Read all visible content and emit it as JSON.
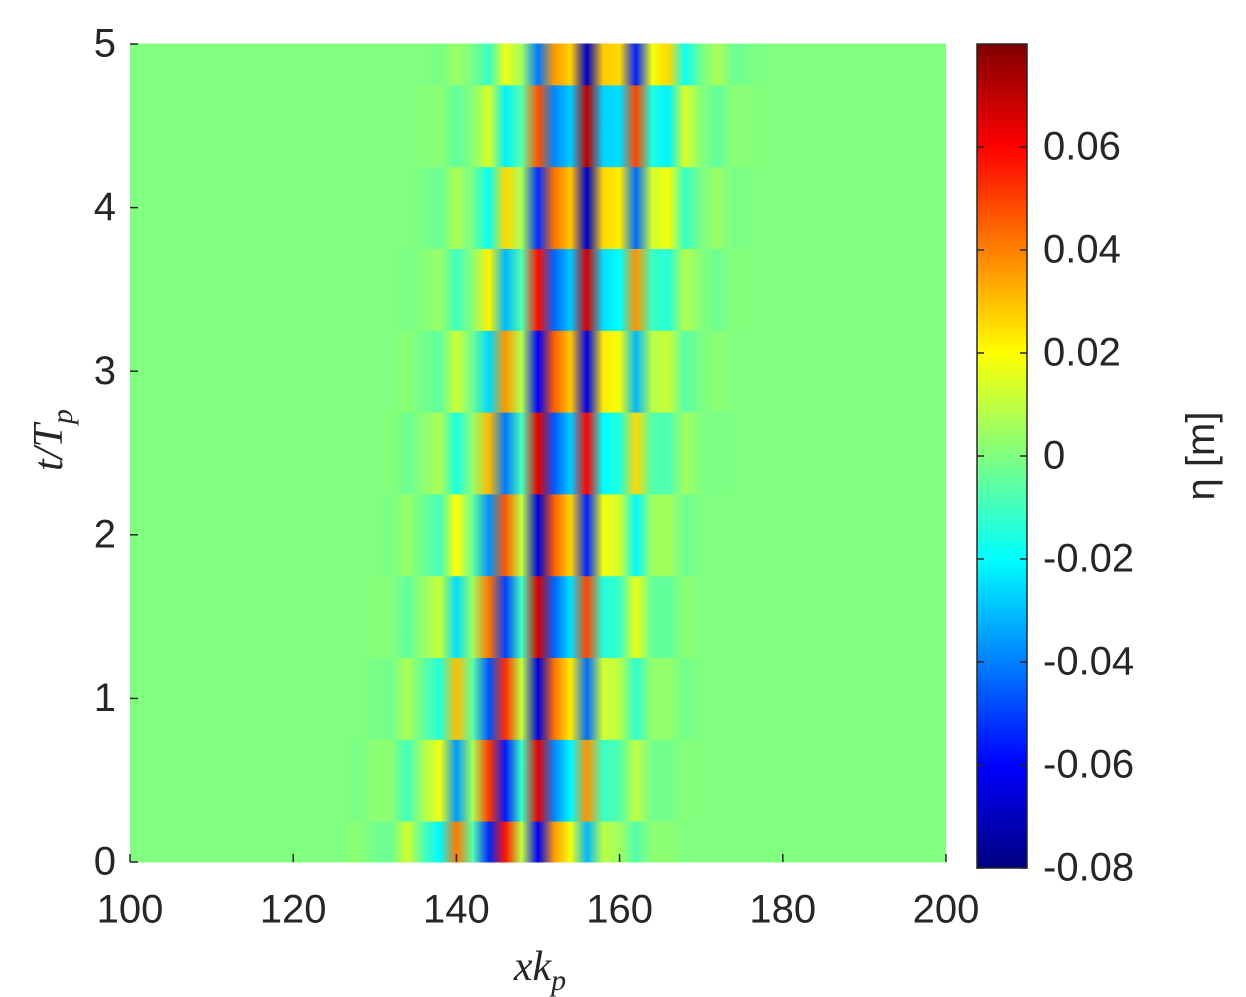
{
  "chart_data": {
    "type": "heatmap",
    "xlabel": [
      "xk",
      "p"
    ],
    "ylabel": [
      "t/T",
      "p"
    ],
    "colorbar_label": "η [m]",
    "colormap": "jet",
    "x": [
      100,
      102,
      104,
      106,
      108,
      110,
      112,
      114,
      116,
      118,
      120,
      122,
      124,
      126,
      128,
      130,
      132,
      134,
      136,
      138,
      140,
      142,
      144,
      146,
      148,
      150,
      152,
      154,
      156,
      158,
      160,
      162,
      164,
      166,
      168,
      170,
      172,
      174,
      176,
      178,
      180,
      182,
      184,
      186,
      188,
      190,
      192,
      194,
      196,
      198,
      200
    ],
    "y": [
      0,
      0.5,
      1,
      1.5,
      2,
      2.5,
      3,
      3.5,
      4,
      4.5,
      5
    ],
    "z": [
      [
        0,
        0,
        0,
        0,
        0,
        0,
        0,
        0,
        0,
        0,
        0,
        0,
        0,
        0,
        0.002,
        -0.002,
        -0.003,
        0.013,
        -0.008,
        -0.021,
        0.041,
        -0.007,
        -0.054,
        0.057,
        0.01,
        -0.061,
        0.036,
        0.018,
        -0.031,
        0.009,
        0.005,
        -0.007,
        0.002,
        0.002,
        0,
        0,
        0,
        0,
        0,
        0,
        0,
        0,
        0,
        0,
        0,
        0,
        0,
        0,
        0,
        0,
        0
      ],
      [
        0,
        0,
        0,
        0,
        0,
        0,
        0,
        0,
        0,
        0,
        0,
        0,
        0,
        0,
        -0.001,
        0.002,
        0.002,
        -0.01,
        0.007,
        0.017,
        -0.036,
        0.006,
        0.051,
        -0.056,
        -0.011,
        0.064,
        -0.039,
        -0.021,
        0.037,
        -0.011,
        -0.007,
        0.01,
        -0.002,
        -0.002,
        0.001,
        0,
        0,
        0,
        0,
        0,
        0,
        0,
        0,
        0,
        0,
        0,
        0,
        0,
        0,
        0,
        0
      ],
      [
        0,
        0,
        0,
        0,
        0,
        0,
        0,
        0,
        0,
        0,
        0,
        0,
        0,
        0,
        0,
        -0.001,
        -0.002,
        0.007,
        -0.005,
        -0.014,
        0.03,
        -0.006,
        -0.047,
        0.053,
        0.01,
        -0.066,
        0.042,
        0.023,
        -0.043,
        0.013,
        0.009,
        -0.013,
        0.003,
        0.003,
        -0.002,
        0,
        0,
        0,
        0,
        0,
        0,
        0,
        0,
        0,
        0,
        0,
        0,
        0,
        0,
        0,
        0
      ],
      [
        0,
        0,
        0,
        0,
        0,
        0,
        0,
        0,
        0,
        0,
        0,
        0,
        0,
        0,
        0,
        0.001,
        0.001,
        -0.005,
        0.004,
        0.011,
        -0.025,
        0.005,
        0.042,
        -0.05,
        -0.01,
        0.067,
        -0.044,
        -0.025,
        0.049,
        -0.015,
        -0.011,
        0.017,
        -0.004,
        -0.005,
        0.002,
        0,
        0,
        0,
        0,
        0,
        0,
        0,
        0,
        0,
        0,
        0,
        0,
        0,
        0,
        0,
        0
      ],
      [
        0,
        0,
        0,
        0,
        0,
        0,
        0,
        0,
        0,
        0,
        0,
        0,
        0,
        0,
        0,
        0,
        -0.001,
        0.004,
        -0.003,
        -0.009,
        0.02,
        -0.004,
        -0.037,
        0.046,
        0.01,
        -0.066,
        0.045,
        0.027,
        -0.055,
        0.018,
        0.013,
        -0.021,
        0.005,
        0.006,
        -0.003,
        0,
        0,
        0,
        0,
        0,
        0,
        0,
        0,
        0,
        0,
        0,
        0,
        0,
        0,
        0,
        0
      ],
      [
        0,
        0,
        0,
        0,
        0,
        0,
        0,
        0,
        0,
        0,
        0,
        0,
        0,
        0,
        0,
        0,
        0.001,
        -0.003,
        0.002,
        0.007,
        -0.016,
        0.003,
        0.031,
        -0.041,
        -0.009,
        0.064,
        -0.046,
        -0.028,
        0.06,
        -0.02,
        -0.015,
        0.026,
        -0.007,
        -0.008,
        0.005,
        0,
        -0.001,
        0,
        0,
        0,
        0,
        0,
        0,
        0,
        0,
        0,
        0,
        0,
        0,
        0,
        0
      ],
      [
        0,
        0,
        0,
        0,
        0,
        0,
        0,
        0,
        0,
        0,
        0,
        0,
        0,
        0,
        0,
        0,
        0,
        0.002,
        -0.002,
        -0.005,
        0.012,
        -0.003,
        -0.026,
        0.036,
        0.008,
        -0.061,
        0.045,
        0.029,
        -0.064,
        0.023,
        0.018,
        -0.031,
        0.009,
        0.011,
        -0.006,
        -0.001,
        0.002,
        0,
        0,
        0,
        0,
        0,
        0,
        0,
        0,
        0,
        0,
        0,
        0,
        0,
        0
      ],
      [
        0,
        0,
        0,
        0,
        0,
        0,
        0,
        0,
        0,
        0,
        0,
        0,
        0,
        0,
        0,
        0,
        0,
        -0.001,
        0.001,
        0.004,
        -0.01,
        0.002,
        0.022,
        -0.031,
        -0.007,
        0.058,
        -0.044,
        -0.029,
        0.067,
        -0.025,
        -0.02,
        0.037,
        -0.011,
        -0.014,
        0.008,
        0.001,
        -0.003,
        0.001,
        0,
        0,
        0,
        0,
        0,
        0,
        0,
        0,
        0,
        0,
        0,
        0,
        0
      ],
      [
        0,
        0,
        0,
        0,
        0,
        0,
        0,
        0,
        0,
        0,
        0,
        0,
        0,
        0,
        0,
        0,
        0,
        0,
        -0.001,
        -0.003,
        0.007,
        -0.002,
        -0.018,
        0.026,
        0.006,
        -0.053,
        0.042,
        0.029,
        -0.069,
        0.026,
        0.023,
        -0.043,
        0.013,
        0.018,
        -0.011,
        -0.001,
        0.004,
        -0.001,
        0,
        0,
        0,
        0,
        0,
        0,
        0,
        0,
        0,
        0,
        0,
        0,
        0
      ],
      [
        0,
        0,
        0,
        0,
        0,
        0,
        0,
        0,
        0,
        0,
        0,
        0,
        0,
        0,
        0,
        0,
        0,
        0,
        0.001,
        0.002,
        -0.005,
        0.001,
        0.014,
        -0.022,
        -0.006,
        0.047,
        -0.039,
        -0.028,
        0.07,
        -0.027,
        -0.025,
        0.049,
        -0.016,
        -0.022,
        0.014,
        0.001,
        -0.005,
        0.002,
        0.001,
        0,
        0,
        0,
        0,
        0,
        0,
        0,
        0,
        0,
        0,
        0,
        0
      ],
      [
        0,
        0,
        0,
        0,
        0,
        0,
        0,
        0,
        0,
        0,
        0,
        0,
        0,
        0,
        0,
        0,
        0,
        0,
        0,
        -0.001,
        0.004,
        -0.001,
        -0.011,
        0.017,
        0.005,
        -0.041,
        0.036,
        0.027,
        -0.069,
        0.028,
        0.026,
        -0.055,
        0.018,
        0.026,
        -0.018,
        -0.002,
        0.007,
        -0.003,
        -0.001,
        0,
        0,
        0,
        0,
        0,
        0,
        0,
        0,
        0,
        0,
        0,
        0
      ]
    ],
    "xlim": [
      100,
      200
    ],
    "ylim": [
      0,
      5
    ],
    "xticks": [
      100,
      120,
      140,
      160,
      180,
      200
    ],
    "yticks": [
      0,
      1,
      2,
      3,
      4,
      5
    ],
    "clim": [
      -0.08,
      0.08
    ],
    "cticks": [
      -0.08,
      -0.06,
      -0.04,
      -0.02,
      0,
      0.02,
      0.04,
      0.06
    ]
  }
}
